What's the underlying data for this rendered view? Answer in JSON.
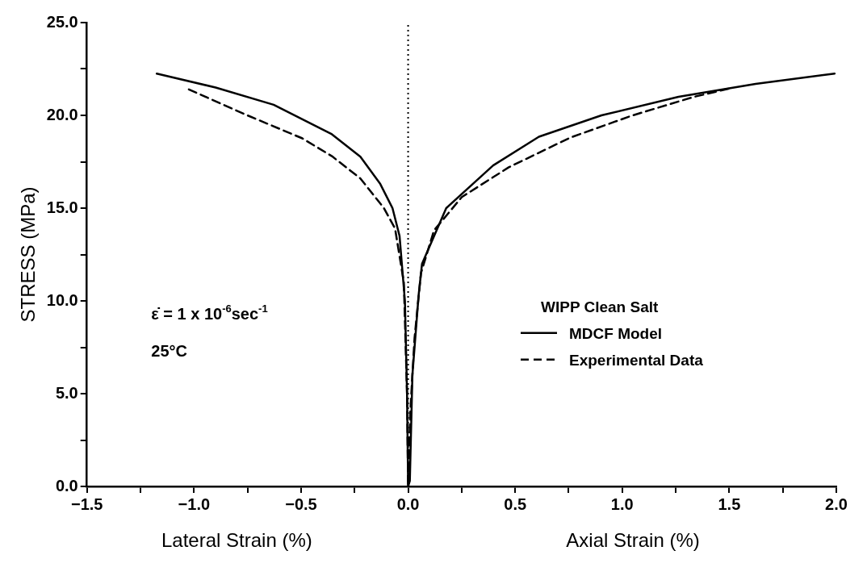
{
  "chart_data": {
    "type": "line",
    "ylabel": "STRESS (MPa)",
    "xlabel": "Lateral Strain (%)",
    "legend_title": "WIPP Clean Salt",
    "legend": "right",
    "xlim": [
      -1.5,
      2.0
    ],
    "ylim": [
      0,
      25
    ],
    "xticks": [
      {
        "value": -1.5,
        "label": "−1.5"
      },
      {
        "value": -1.25,
        "label": null
      },
      {
        "value": -1.0,
        "label": "−1.0"
      },
      {
        "value": -0.75,
        "label": null
      },
      {
        "value": -0.5,
        "label": "−0.5"
      },
      {
        "value": -0.25,
        "label": null
      },
      {
        "value": 0,
        "label": "0.0"
      },
      {
        "value": 0.25,
        "label": null
      },
      {
        "value": 0.5,
        "label": "0.5"
      },
      {
        "value": 0.75,
        "label": null
      },
      {
        "value": 1.0,
        "label": "1.0"
      },
      {
        "value": 1.25,
        "label": null
      },
      {
        "value": 1.5,
        "label": "1.5"
      },
      {
        "value": 1.75,
        "label": null
      },
      {
        "value": 2.0,
        "label": "2.0"
      }
    ],
    "yticks": [
      {
        "value": 0,
        "label": "0.0"
      },
      {
        "value": 2.5,
        "label": null
      },
      {
        "value": 5,
        "label": "5.0"
      },
      {
        "value": 7.5,
        "label": null
      },
      {
        "value": 10,
        "label": "10.0"
      },
      {
        "value": 12.5,
        "label": null
      },
      {
        "value": 15,
        "label": "15.0"
      },
      {
        "value": 17.5,
        "label": null
      },
      {
        "value": 20,
        "label": "20.0"
      },
      {
        "value": 22.5,
        "label": null
      },
      {
        "value": 25,
        "label": "25.0"
      }
    ],
    "ref_lines": [
      {
        "axis": "x",
        "value": 0,
        "color": "#000000",
        "line_style": "dotted"
      }
    ],
    "annotations": [
      "ε̇ = 1 x 10$^{-6}$sec$^{-1}$",
      "25°C",
      "Axial Strain (%)"
    ],
    "marker": "none",
    "series": [
      {
        "name": "MDCF Model",
        "color": "#000000",
        "line_style": "solid",
        "x": [
          -1.174,
          -0.899,
          -0.628,
          -0.356,
          -0.223,
          -0.13,
          -0.073,
          -0.04,
          -0.015,
          -0.005,
          0,
          0.008,
          0.02,
          0.049,
          0.065,
          0.178,
          0.397,
          0.611,
          0.903,
          1.263,
          1.623,
          1.992
        ],
        "values": [
          22.25,
          21.5,
          20.57,
          18.98,
          17.77,
          16.3,
          15.0,
          13.5,
          10,
          5,
          0,
          0.3,
          6.0,
          10.3,
          12.0,
          15.0,
          17.3,
          18.85,
          20.0,
          21.0,
          21.7,
          22.25
        ]
      },
      {
        "name": "Experimental Data",
        "color": "#000000",
        "line_style": "dashed",
        "x": [
          -1.024,
          -0.761,
          -0.494,
          -0.356,
          -0.223,
          -0.113,
          -0.061,
          -0.02,
          -0.005,
          0,
          0.01,
          0.03,
          0.06,
          0.121,
          0.251,
          0.47,
          0.757,
          1.049,
          1.336,
          1.51
        ],
        "values": [
          21.4,
          20.05,
          18.76,
          17.8,
          16.6,
          15.0,
          13.9,
          11,
          5,
          0,
          4,
          8,
          11.5,
          13.8,
          15.6,
          17.2,
          18.8,
          20.0,
          21.0,
          21.47
        ]
      }
    ]
  }
}
